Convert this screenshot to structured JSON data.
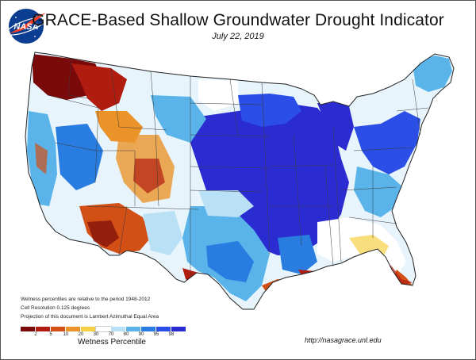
{
  "header": {
    "title": "GRACE-Based Shallow Groundwater Drought Indicator",
    "date": "July 22, 2019",
    "logo_text": "NASA"
  },
  "notes": [
    "Wetness percentiles are relative to the period 1948-2012",
    "Cell Resolution 0.125 degrees",
    "Projection of this document is Lambert Azimuthal Equal Area"
  ],
  "legend": {
    "title": "Wetness Percentile",
    "ticks": [
      "2",
      "5",
      "10",
      "20",
      "30",
      "70",
      "80",
      "90",
      "95",
      "98"
    ],
    "colors": [
      "#7a0a0a",
      "#b01c10",
      "#d25016",
      "#eb9329",
      "#f5d046",
      "#ffffff",
      "#b9e0f5",
      "#5ab4ea",
      "#2a7de0",
      "#2a4ee6",
      "#2b2bd2"
    ]
  },
  "source_url": "http://nasagrace.unl.edu",
  "colors": {
    "extreme_dry": "#7a0a0a",
    "very_wet": "#2b2bd2",
    "state_lines": "#3a3a3a"
  }
}
